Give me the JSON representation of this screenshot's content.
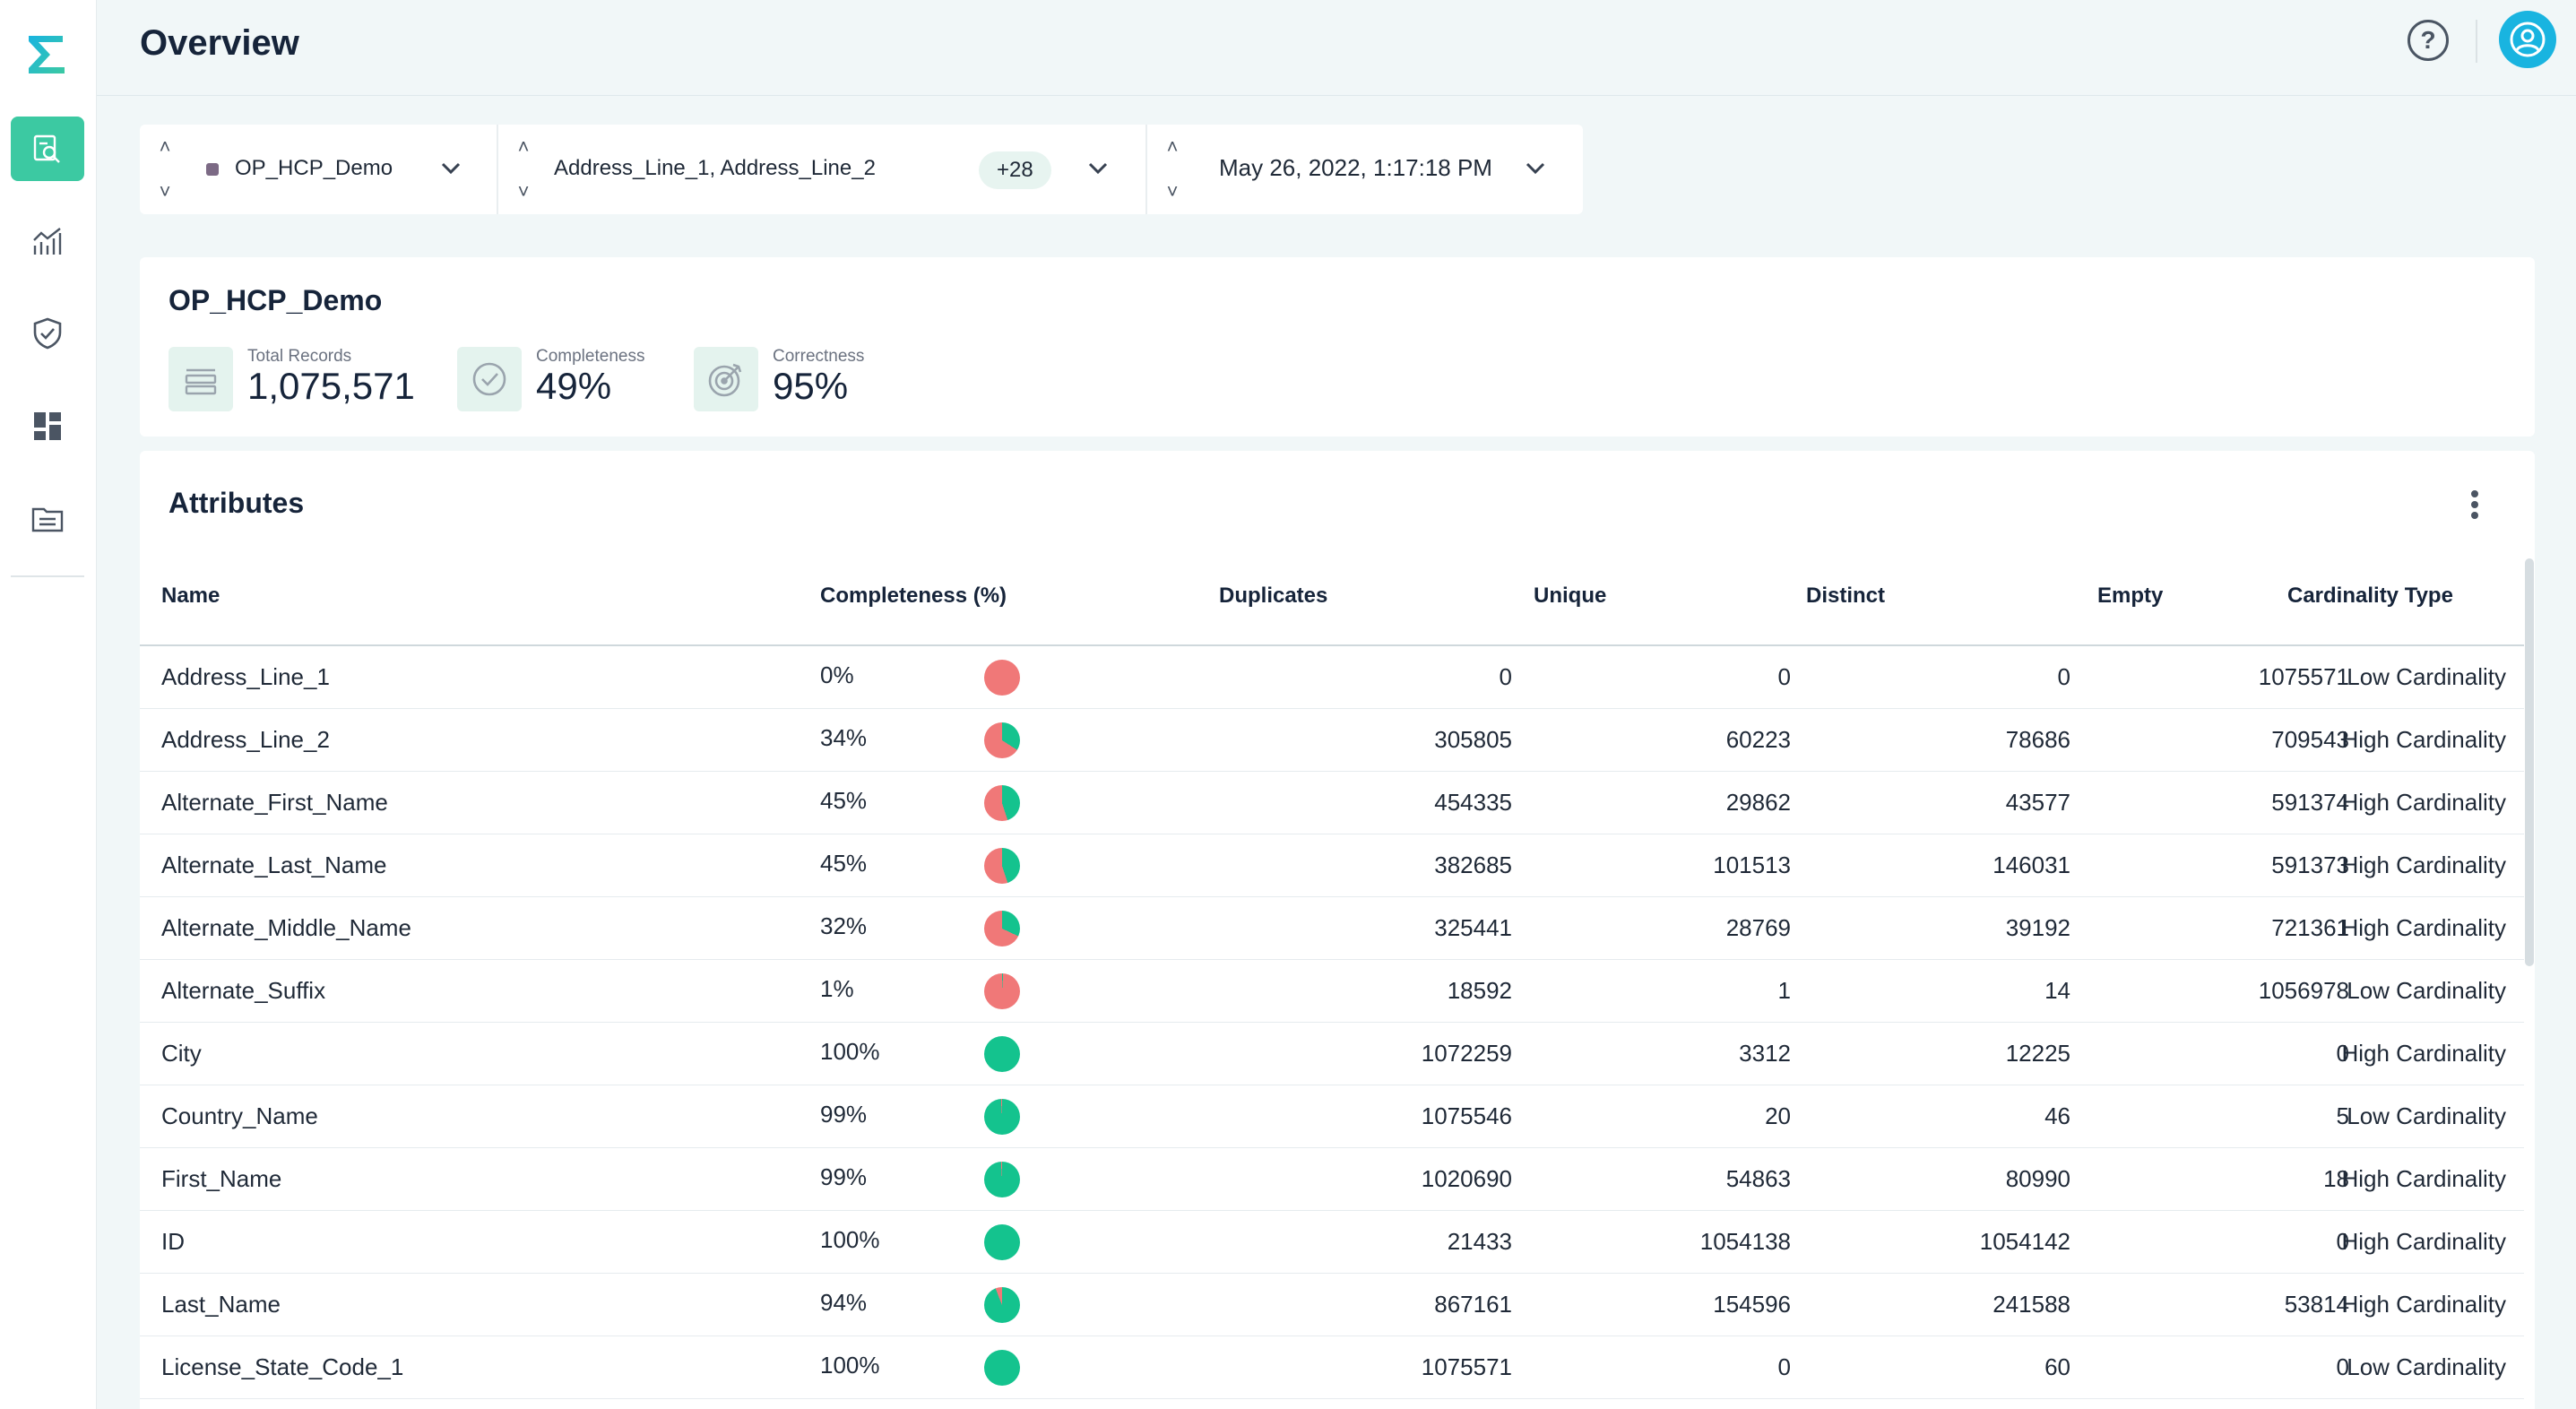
{
  "header": {
    "title": "Overview",
    "help_label": "?"
  },
  "sidebar": {
    "items": [
      {
        "name": "data-quality-overview",
        "icon": "search-report-icon",
        "active": true
      },
      {
        "name": "analytics",
        "icon": "chart-icon",
        "active": false
      },
      {
        "name": "rules",
        "icon": "shield-check-icon",
        "active": false
      },
      {
        "name": "dashboard",
        "icon": "grid-icon",
        "active": false
      },
      {
        "name": "files",
        "icon": "folder-icon",
        "active": false
      }
    ]
  },
  "filters": {
    "dataset": "OP_HCP_Demo",
    "attributes": "Address_Line_1, Address_Line_2",
    "attributes_more": "+28",
    "run_date": "May 26, 2022, 1:17:18 PM"
  },
  "summary": {
    "title": "OP_HCP_Demo",
    "total_records_label": "Total Records",
    "total_records_value": "1,075,571",
    "completeness_label": "Completeness",
    "completeness_value": "49%",
    "correctness_label": "Correctness",
    "correctness_value": "95%"
  },
  "attributes": {
    "title": "Attributes",
    "columns": [
      "Name",
      "Completeness (%)",
      "Duplicates",
      "Unique",
      "Distinct",
      "Empty",
      "Cardinality Type"
    ],
    "rows": [
      {
        "name": "Address_Line_1",
        "completeness": "0%",
        "pct": 0,
        "duplicates": "0",
        "unique": "0",
        "distinct": "0",
        "empty": "1075571",
        "cardinality": "Low Cardinality"
      },
      {
        "name": "Address_Line_2",
        "completeness": "34%",
        "pct": 34,
        "duplicates": "305805",
        "unique": "60223",
        "distinct": "78686",
        "empty": "709543",
        "cardinality": "High Cardinality"
      },
      {
        "name": "Alternate_First_Name",
        "completeness": "45%",
        "pct": 45,
        "duplicates": "454335",
        "unique": "29862",
        "distinct": "43577",
        "empty": "591374",
        "cardinality": "High Cardinality"
      },
      {
        "name": "Alternate_Last_Name",
        "completeness": "45%",
        "pct": 45,
        "duplicates": "382685",
        "unique": "101513",
        "distinct": "146031",
        "empty": "591373",
        "cardinality": "High Cardinality"
      },
      {
        "name": "Alternate_Middle_Name",
        "completeness": "32%",
        "pct": 32,
        "duplicates": "325441",
        "unique": "28769",
        "distinct": "39192",
        "empty": "721361",
        "cardinality": "High Cardinality"
      },
      {
        "name": "Alternate_Suffix",
        "completeness": "1%",
        "pct": 1,
        "duplicates": "18592",
        "unique": "1",
        "distinct": "14",
        "empty": "1056978",
        "cardinality": "Low Cardinality"
      },
      {
        "name": "City",
        "completeness": "100%",
        "pct": 100,
        "duplicates": "1072259",
        "unique": "3312",
        "distinct": "12225",
        "empty": "0",
        "cardinality": "High Cardinality"
      },
      {
        "name": "Country_Name",
        "completeness": "99%",
        "pct": 99,
        "duplicates": "1075546",
        "unique": "20",
        "distinct": "46",
        "empty": "5",
        "cardinality": "Low Cardinality"
      },
      {
        "name": "First_Name",
        "completeness": "99%",
        "pct": 99,
        "duplicates": "1020690",
        "unique": "54863",
        "distinct": "80990",
        "empty": "18",
        "cardinality": "High Cardinality"
      },
      {
        "name": "ID",
        "completeness": "100%",
        "pct": 100,
        "duplicates": "21433",
        "unique": "1054138",
        "distinct": "1054142",
        "empty": "0",
        "cardinality": "High Cardinality"
      },
      {
        "name": "Last_Name",
        "completeness": "94%",
        "pct": 94,
        "duplicates": "867161",
        "unique": "154596",
        "distinct": "241588",
        "empty": "53814",
        "cardinality": "High Cardinality"
      },
      {
        "name": "License_State_Code_1",
        "completeness": "100%",
        "pct": 100,
        "duplicates": "1075571",
        "unique": "0",
        "distinct": "60",
        "empty": "0",
        "cardinality": "Low Cardinality"
      }
    ]
  },
  "colors": {
    "accent": "#3cc9a2",
    "complete": "#14c38e",
    "incomplete": "#f07878",
    "avatar": "#19b4e0"
  }
}
